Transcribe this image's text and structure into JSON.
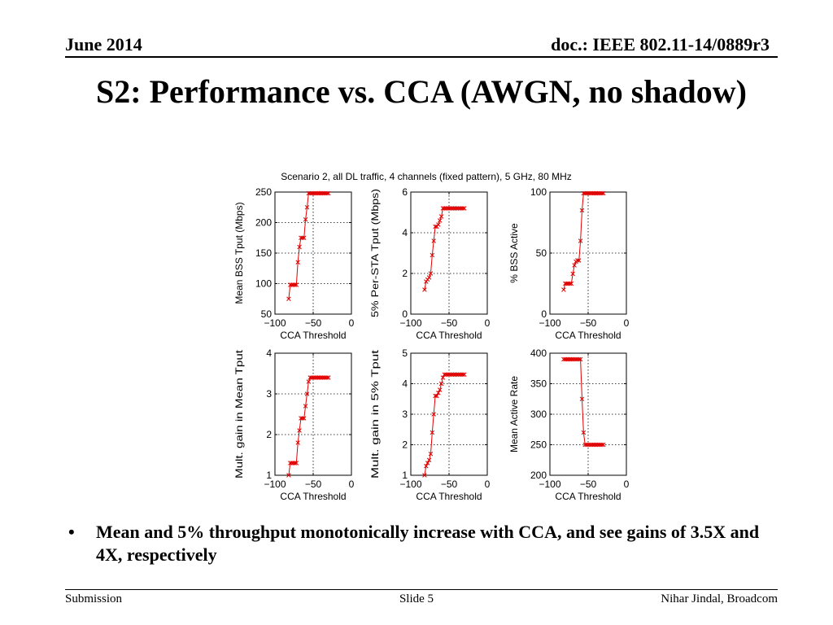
{
  "header": {
    "date": "June 2014",
    "doc": "doc.: IEEE 802.11-14/0889r3"
  },
  "slide": {
    "title": "S2: Performance vs. CCA (AWGN, no shadow)",
    "bullets": [
      "Mean and 5% throughput monotonically increase with CCA, and see gains of 3.5X and 4X, respectively"
    ]
  },
  "footer": {
    "left": "Submission",
    "center": "Slide 5",
    "right": "Nihar Jindal, Broadcom"
  },
  "figure": {
    "suptitle": "Scenario 2, all DL traffic, 4 channels (fixed pattern), 5 GHz, 80 MHz"
  },
  "chart_data": [
    {
      "type": "line",
      "xlabel": "CCA Threshold",
      "ylabel": "Mean BSS Tput (Mbps)",
      "xlim": [
        -100,
        0
      ],
      "ylim": [
        50,
        250
      ],
      "xticks": [
        -100,
        -50,
        0
      ],
      "yticks": [
        50,
        100,
        150,
        200,
        250
      ],
      "grid": true,
      "series": [
        {
          "color": "#e00000",
          "marker": "x",
          "x": [
            -82,
            -80,
            -78,
            -76,
            -74,
            -72,
            -70,
            -68,
            -66,
            -64,
            -62,
            -60,
            -58,
            -56,
            -54,
            -52,
            -50,
            -48,
            -46,
            -44,
            -42,
            -40,
            -38,
            -36,
            -34,
            -32,
            -30
          ],
          "y": [
            75,
            98,
            98,
            98,
            98,
            98,
            135,
            160,
            175,
            175,
            175,
            205,
            225,
            248,
            248,
            248,
            248,
            248,
            248,
            248,
            248,
            248,
            248,
            248,
            248,
            248,
            248
          ]
        }
      ]
    },
    {
      "type": "line",
      "xlabel": "CCA Threshold",
      "ylabel": "5% Per-STA Tput (Mbps)",
      "xlim": [
        -100,
        0
      ],
      "ylim": [
        0,
        6
      ],
      "xticks": [
        -100,
        -50,
        0
      ],
      "yticks": [
        0,
        2,
        4,
        6
      ],
      "grid": true,
      "series": [
        {
          "color": "#e00000",
          "marker": "x",
          "x": [
            -82,
            -80,
            -78,
            -76,
            -74,
            -72,
            -70,
            -68,
            -66,
            -64,
            -62,
            -60,
            -58,
            -56,
            -54,
            -52,
            -50,
            -48,
            -46,
            -44,
            -42,
            -40,
            -38,
            -36,
            -34,
            -32,
            -30
          ],
          "y": [
            1.2,
            1.6,
            1.7,
            1.8,
            2.0,
            2.9,
            3.6,
            4.3,
            4.3,
            4.4,
            4.6,
            4.8,
            5.2,
            5.2,
            5.2,
            5.2,
            5.2,
            5.2,
            5.2,
            5.2,
            5.2,
            5.2,
            5.2,
            5.2,
            5.2,
            5.2,
            5.2
          ]
        }
      ]
    },
    {
      "type": "line",
      "xlabel": "CCA Threshold",
      "ylabel": "% BSS Active",
      "xlim": [
        -100,
        0
      ],
      "ylim": [
        0,
        100
      ],
      "xticks": [
        -100,
        -50,
        0
      ],
      "yticks": [
        0,
        50,
        100
      ],
      "grid": true,
      "series": [
        {
          "color": "#e00000",
          "marker": "x",
          "x": [
            -82,
            -80,
            -78,
            -76,
            -74,
            -72,
            -70,
            -68,
            -66,
            -64,
            -62,
            -60,
            -58,
            -56,
            -54,
            -52,
            -50,
            -48,
            -46,
            -44,
            -42,
            -40,
            -38,
            -36,
            -34,
            -32,
            -30
          ],
          "y": [
            20,
            25,
            25,
            25,
            25,
            25,
            33,
            40,
            43,
            44,
            44,
            60,
            85,
            99,
            99,
            99,
            99,
            99,
            99,
            99,
            99,
            99,
            99,
            99,
            99,
            99,
            99
          ]
        }
      ]
    },
    {
      "type": "line",
      "xlabel": "CCA Threshold",
      "ylabel": "Mult. gain in Mean Tput",
      "xlim": [
        -100,
        0
      ],
      "ylim": [
        1,
        4
      ],
      "xticks": [
        -100,
        -50,
        0
      ],
      "yticks": [
        1,
        2,
        3,
        4
      ],
      "grid": true,
      "series": [
        {
          "color": "#e00000",
          "marker": "x",
          "x": [
            -82,
            -80,
            -78,
            -76,
            -74,
            -72,
            -70,
            -68,
            -66,
            -64,
            -62,
            -60,
            -58,
            -56,
            -54,
            -52,
            -50,
            -48,
            -46,
            -44,
            -42,
            -40,
            -38,
            -36,
            -34,
            -32,
            -30
          ],
          "y": [
            1.0,
            1.3,
            1.3,
            1.3,
            1.3,
            1.3,
            1.8,
            2.1,
            2.4,
            2.4,
            2.4,
            2.7,
            3.0,
            3.3,
            3.4,
            3.4,
            3.4,
            3.4,
            3.4,
            3.4,
            3.4,
            3.4,
            3.4,
            3.4,
            3.4,
            3.4,
            3.4
          ]
        }
      ]
    },
    {
      "type": "line",
      "xlabel": "CCA Threshold",
      "ylabel": "Mult. gain in 5% Tput",
      "xlim": [
        -100,
        0
      ],
      "ylim": [
        1,
        5
      ],
      "xticks": [
        -100,
        -50,
        0
      ],
      "yticks": [
        1,
        2,
        3,
        4,
        5
      ],
      "grid": true,
      "series": [
        {
          "color": "#e00000",
          "marker": "x",
          "x": [
            -82,
            -80,
            -78,
            -76,
            -74,
            -72,
            -70,
            -68,
            -66,
            -64,
            -62,
            -60,
            -58,
            -56,
            -54,
            -52,
            -50,
            -48,
            -46,
            -44,
            -42,
            -40,
            -38,
            -36,
            -34,
            -32,
            -30
          ],
          "y": [
            1.0,
            1.3,
            1.4,
            1.5,
            1.7,
            2.4,
            3.0,
            3.6,
            3.6,
            3.7,
            3.8,
            4.0,
            4.2,
            4.3,
            4.3,
            4.3,
            4.3,
            4.3,
            4.3,
            4.3,
            4.3,
            4.3,
            4.3,
            4.3,
            4.3,
            4.3,
            4.3
          ]
        }
      ]
    },
    {
      "type": "line",
      "xlabel": "CCA Threshold",
      "ylabel": "Mean Active Rate",
      "xlim": [
        -100,
        0
      ],
      "ylim": [
        200,
        400
      ],
      "xticks": [
        -100,
        -50,
        0
      ],
      "yticks": [
        200,
        250,
        300,
        350,
        400
      ],
      "grid": true,
      "series": [
        {
          "color": "#e00000",
          "marker": "x",
          "x": [
            -82,
            -80,
            -78,
            -76,
            -74,
            -72,
            -70,
            -68,
            -66,
            -64,
            -62,
            -60,
            -58,
            -56,
            -54,
            -52,
            -50,
            -48,
            -46,
            -44,
            -42,
            -40,
            -38,
            -36,
            -34,
            -32,
            -30
          ],
          "y": [
            390,
            390,
            390,
            390,
            390,
            390,
            390,
            390,
            390,
            390,
            390,
            390,
            325,
            270,
            250,
            250,
            250,
            250,
            250,
            250,
            250,
            250,
            250,
            250,
            250,
            250,
            250
          ]
        }
      ]
    }
  ]
}
